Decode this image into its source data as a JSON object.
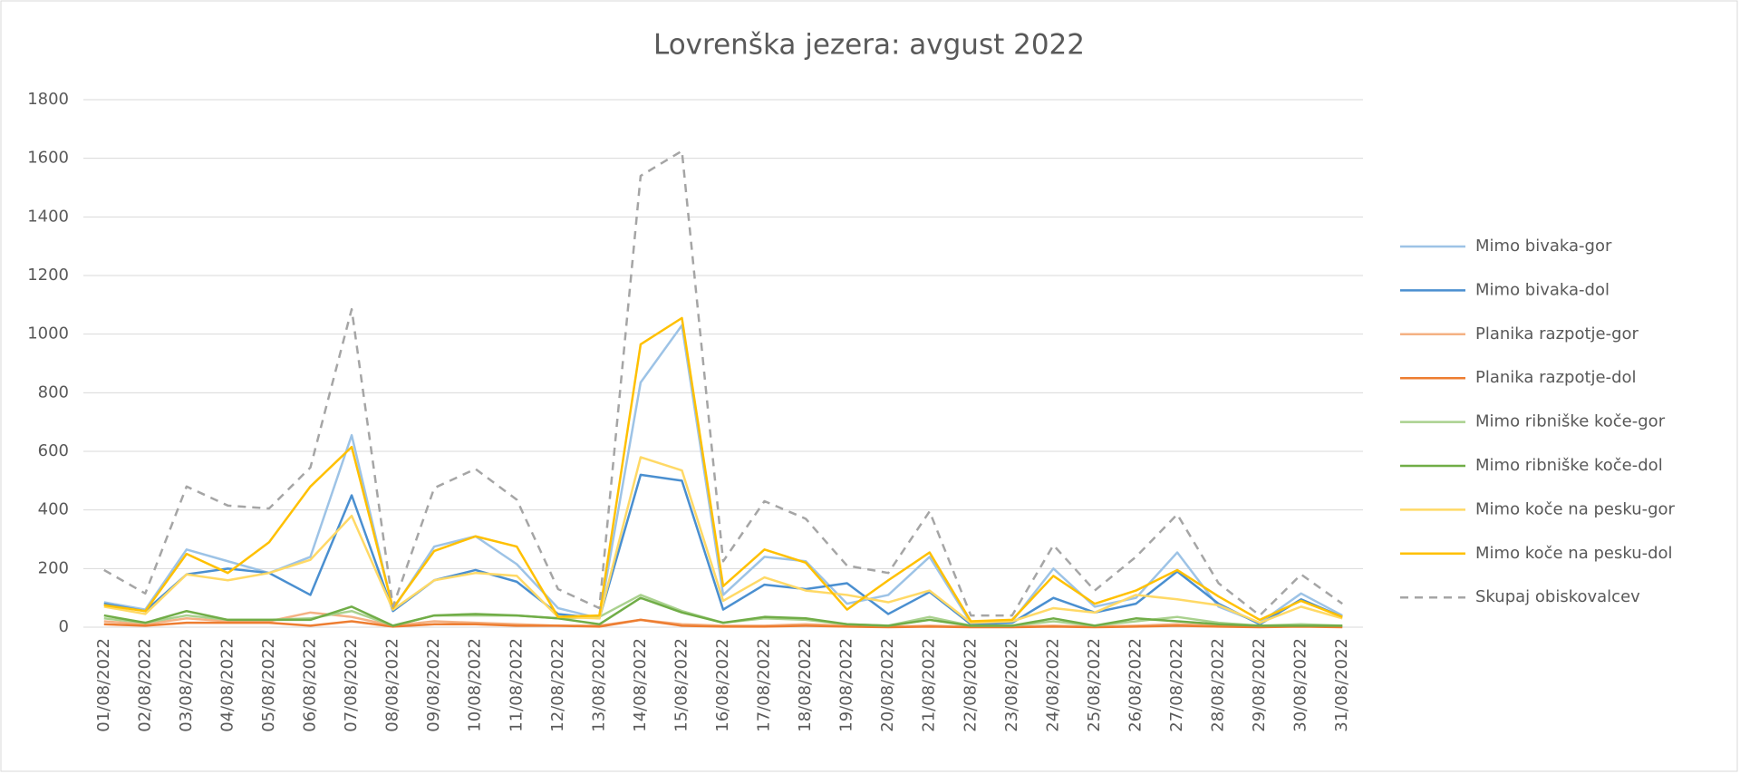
{
  "chart_data": {
    "type": "line",
    "title": "Lovrenška jezera: avgust 2022",
    "categories": [
      "01/08/2022",
      "02/08/2022",
      "03/08/2022",
      "04/08/2022",
      "05/08/2022",
      "06/08/2022",
      "07/08/2022",
      "08/08/2022",
      "09/08/2022",
      "10/08/2022",
      "11/08/2022",
      "12/08/2022",
      "13/08/2022",
      "14/08/2022",
      "15/08/2022",
      "16/08/2022",
      "17/08/2022",
      "18/08/2022",
      "19/08/2022",
      "20/08/2022",
      "21/08/2022",
      "22/08/2022",
      "23/08/2022",
      "24/08/2022",
      "25/08/2022",
      "26/08/2022",
      "27/08/2022",
      "28/08/2022",
      "29/08/2022",
      "30/08/2022",
      "31/08/2022"
    ],
    "series": [
      {
        "name": "Mimo bivaka-gor",
        "color": "#9dc3e6",
        "values": [
          85,
          60,
          265,
          225,
          185,
          240,
          655,
          60,
          275,
          310,
          215,
          65,
          30,
          835,
          1030,
          110,
          240,
          225,
          80,
          110,
          240,
          15,
          20,
          200,
          70,
          100,
          255,
          70,
          15,
          115,
          40
        ]
      },
      {
        "name": "Mimo bivaka-dol",
        "color": "#4a8fd0",
        "values": [
          80,
          55,
          180,
          200,
          185,
          110,
          450,
          55,
          160,
          195,
          155,
          45,
          30,
          520,
          500,
          60,
          145,
          130,
          150,
          45,
          120,
          10,
          15,
          100,
          50,
          80,
          190,
          80,
          10,
          95,
          35
        ]
      },
      {
        "name": "Planika razpotje-gor",
        "color": "#f4b183",
        "values": [
          20,
          10,
          30,
          20,
          20,
          50,
          35,
          5,
          20,
          15,
          10,
          5,
          5,
          25,
          10,
          5,
          5,
          10,
          5,
          2,
          5,
          2,
          2,
          5,
          2,
          5,
          10,
          5,
          2,
          5,
          2
        ]
      },
      {
        "name": "Planika razpotje-dol",
        "color": "#ed7d31",
        "values": [
          10,
          5,
          15,
          15,
          15,
          5,
          20,
          2,
          10,
          10,
          5,
          5,
          2,
          25,
          5,
          2,
          2,
          5,
          2,
          0,
          2,
          0,
          0,
          2,
          0,
          2,
          5,
          2,
          0,
          2,
          0
        ]
      },
      {
        "name": "Mimo ribniške koče-gor",
        "color": "#a9d18e",
        "values": [
          30,
          15,
          40,
          25,
          25,
          30,
          55,
          5,
          40,
          40,
          40,
          30,
          35,
          110,
          55,
          15,
          30,
          25,
          10,
          5,
          35,
          5,
          5,
          20,
          5,
          20,
          35,
          15,
          5,
          10,
          5
        ]
      },
      {
        "name": "Mimo ribniške koče-dol",
        "color": "#70ad47",
        "values": [
          40,
          15,
          55,
          25,
          25,
          25,
          70,
          5,
          40,
          45,
          40,
          30,
          10,
          100,
          50,
          15,
          35,
          30,
          10,
          5,
          25,
          5,
          5,
          30,
          5,
          30,
          20,
          10,
          5,
          5,
          5
        ]
      },
      {
        "name": "Mimo koče na pesku-gor",
        "color": "#ffd966",
        "values": [
          70,
          45,
          180,
          160,
          185,
          230,
          380,
          60,
          160,
          185,
          175,
          35,
          30,
          580,
          535,
          90,
          170,
          125,
          110,
          85,
          125,
          15,
          20,
          65,
          50,
          110,
          95,
          75,
          15,
          70,
          30
        ]
      },
      {
        "name": "Mimo koče na pesku-dol",
        "color": "#ffc000",
        "values": [
          75,
          55,
          250,
          185,
          290,
          480,
          615,
          65,
          260,
          310,
          275,
          35,
          40,
          965,
          1055,
          140,
          265,
          220,
          60,
          160,
          255,
          20,
          25,
          175,
          80,
          125,
          195,
          105,
          25,
          90,
          35
        ]
      },
      {
        "name": "Skupaj obiskovalcev",
        "color": "#a5a5a5",
        "line_style": "dashed",
        "values": [
          195,
          115,
          480,
          415,
          405,
          545,
          1085,
          70,
          475,
          540,
          435,
          130,
          65,
          1540,
          1625,
          225,
          430,
          370,
          210,
          185,
          395,
          40,
          40,
          280,
          125,
          240,
          385,
          150,
          40,
          180,
          80
        ]
      }
    ],
    "ylim": [
      0,
      1800
    ],
    "yticks": [
      0,
      200,
      400,
      600,
      800,
      1000,
      1200,
      1400,
      1600,
      1800
    ],
    "grid": true,
    "legend": "right"
  }
}
